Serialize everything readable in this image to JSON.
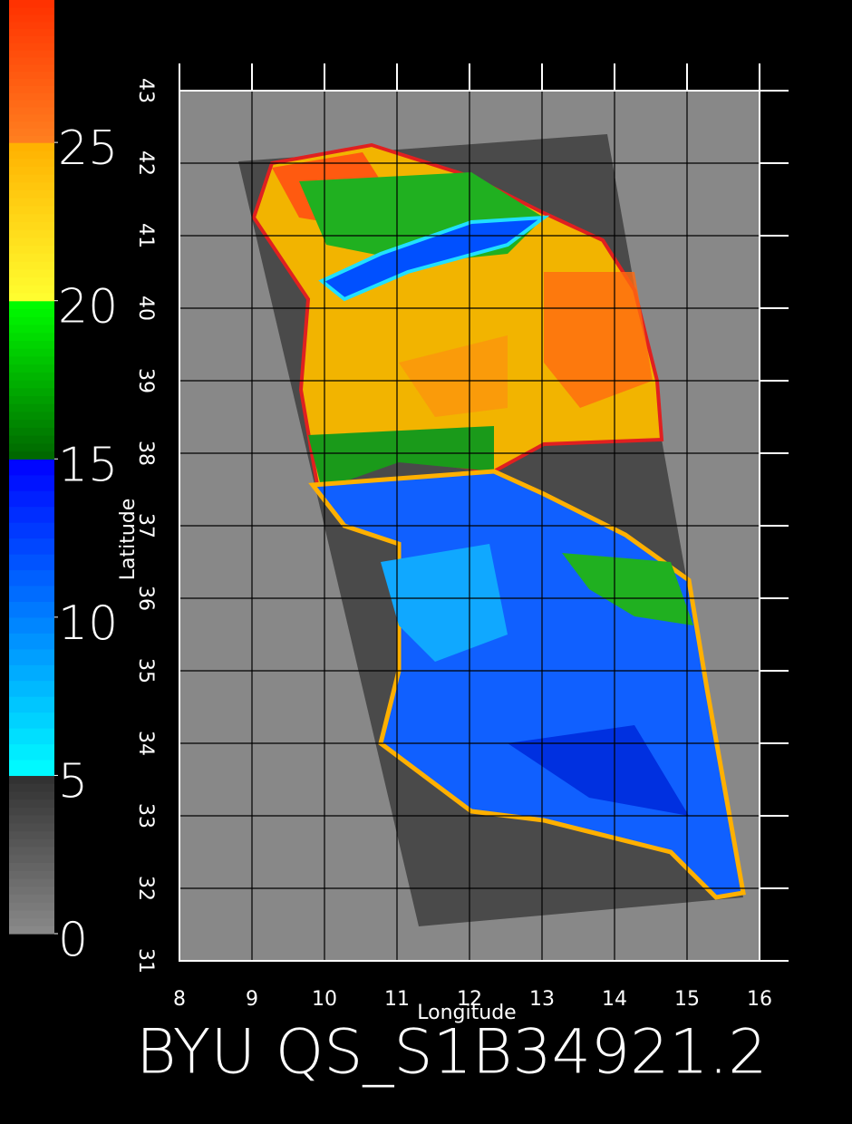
{
  "chart_data": {
    "type": "map",
    "title": "BYU QS_S1B34921.2",
    "x_label": "Longitude",
    "y_label": "Latitude",
    "xlim": [
      8,
      16
    ],
    "ylim": [
      31,
      43
    ],
    "xticks": [
      8,
      9,
      10,
      11,
      12,
      13,
      14,
      15,
      16
    ],
    "yticks": [
      31,
      32,
      33,
      34,
      35,
      36,
      37,
      38,
      39,
      40,
      41,
      42,
      43
    ],
    "grid": true,
    "colorbar": {
      "lim": [
        0,
        29.5
      ],
      "ticks": [
        0,
        5,
        10,
        15,
        20,
        25
      ],
      "colormap": [
        [
          0,
          "#8a8a8a"
        ],
        [
          5,
          "#303030"
        ],
        [
          5,
          "#00ffff"
        ],
        [
          15,
          "#0000ff"
        ],
        [
          15,
          "#006400"
        ],
        [
          20,
          "#00ff00"
        ],
        [
          20,
          "#ffff30"
        ],
        [
          25,
          "#ffb000"
        ],
        [
          25,
          "#ff8020"
        ],
        [
          29.5,
          "#ff3000"
        ]
      ]
    }
  }
}
